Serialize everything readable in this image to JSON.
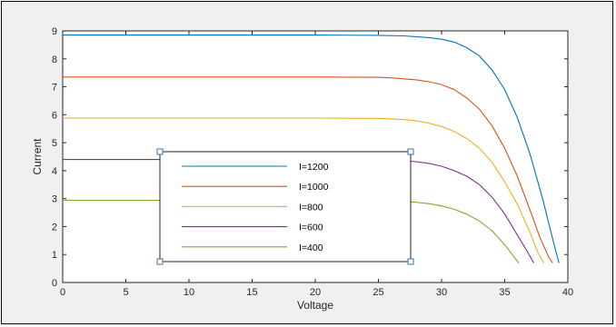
{
  "chart_data": {
    "type": "line",
    "title": "",
    "xlabel": "Voltage",
    "ylabel": "Current",
    "xlim": [
      0,
      40
    ],
    "ylim": [
      0,
      9
    ],
    "xticks": [
      0,
      5,
      10,
      15,
      20,
      25,
      30,
      35,
      40
    ],
    "yticks": [
      0,
      1,
      2,
      3,
      4,
      5,
      6,
      7,
      8,
      9
    ],
    "grid": false,
    "legend_placement": "lower-center",
    "series": [
      {
        "name": "I=1200",
        "color": "#0072BD",
        "x": [
          0,
          5,
          10,
          15,
          20,
          25,
          27,
          29,
          30,
          31,
          32,
          33,
          34,
          35,
          36,
          37,
          38,
          38.5,
          39,
          39.3
        ],
        "y": [
          8.85,
          8.85,
          8.85,
          8.85,
          8.85,
          8.84,
          8.82,
          8.76,
          8.7,
          8.6,
          8.4,
          8.1,
          7.6,
          6.9,
          5.9,
          4.6,
          3.0,
          2.1,
          1.2,
          0.7
        ]
      },
      {
        "name": "I=1000",
        "color": "#D95319",
        "x": [
          0,
          5,
          10,
          15,
          20,
          25,
          26,
          28,
          29,
          30,
          31,
          32,
          33,
          34,
          35,
          36,
          37,
          37.8,
          38.5,
          38.8
        ],
        "y": [
          7.35,
          7.35,
          7.35,
          7.35,
          7.35,
          7.34,
          7.32,
          7.25,
          7.18,
          7.08,
          6.9,
          6.6,
          6.2,
          5.6,
          4.8,
          3.8,
          2.6,
          1.6,
          0.9,
          0.7
        ]
      },
      {
        "name": "I=800",
        "color": "#EDB120",
        "x": [
          0,
          5,
          10,
          15,
          20,
          25,
          27,
          28,
          29,
          30,
          31,
          32,
          33,
          34,
          35,
          36,
          37,
          37.6,
          38.1
        ],
        "y": [
          5.88,
          5.88,
          5.88,
          5.88,
          5.88,
          5.87,
          5.83,
          5.78,
          5.7,
          5.58,
          5.4,
          5.15,
          4.8,
          4.3,
          3.6,
          2.8,
          1.8,
          1.1,
          0.7
        ]
      },
      {
        "name": "I=600",
        "color": "#7E2F8E",
        "x": [
          0,
          5,
          10,
          15,
          20,
          25,
          27,
          28,
          29,
          30,
          31,
          32,
          33,
          34,
          35,
          36,
          36.8,
          37.3
        ],
        "y": [
          4.4,
          4.4,
          4.4,
          4.4,
          4.4,
          4.39,
          4.36,
          4.32,
          4.26,
          4.16,
          4.0,
          3.8,
          3.5,
          3.05,
          2.45,
          1.7,
          1.1,
          0.7
        ]
      },
      {
        "name": "I=400",
        "color": "#77AC30",
        "x": [
          0,
          5,
          10,
          15,
          20,
          25,
          27,
          28,
          29,
          30,
          31,
          32,
          33,
          34,
          35,
          35.6,
          36.1
        ],
        "y": [
          2.94,
          2.94,
          2.94,
          2.94,
          2.94,
          2.93,
          2.91,
          2.87,
          2.82,
          2.74,
          2.62,
          2.44,
          2.2,
          1.85,
          1.35,
          1.0,
          0.7
        ]
      }
    ]
  }
}
